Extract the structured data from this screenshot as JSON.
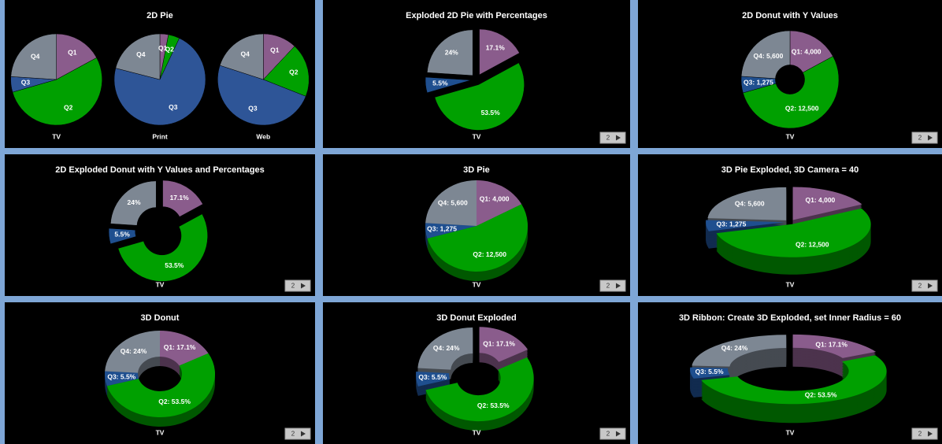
{
  "chart_data": [
    {
      "type": "pie",
      "title": "2D Pie",
      "categories": [
        "Q1",
        "Q2",
        "Q3",
        "Q4"
      ],
      "colors": [
        "#8a5c8c",
        "#00a000",
        "#2e5597",
        "#7d8793"
      ],
      "series": [
        {
          "name": "TV",
          "values": [
            17.1,
            53.5,
            5.5,
            24
          ]
        },
        {
          "name": "Print",
          "values": [
            3,
            4,
            72,
            21
          ]
        },
        {
          "name": "Web",
          "values": [
            12,
            19,
            49,
            20
          ]
        }
      ]
    },
    {
      "type": "pie",
      "title": "Exploded 2D Pie with Percentages",
      "categories": [
        "Q1",
        "Q2",
        "Q3",
        "Q4"
      ],
      "colors": [
        "#8a5c8c",
        "#00a000",
        "#1f4f8f",
        "#7d8793"
      ],
      "exploded": true,
      "pager": "2",
      "series": [
        {
          "name": "TV",
          "values": [
            17.1,
            53.5,
            5.5,
            24
          ],
          "value_labels": [
            "17.1%",
            "53.5%",
            "5.5%",
            "24%"
          ]
        }
      ]
    },
    {
      "type": "donut",
      "title": "2D Donut with Y Values",
      "categories": [
        "Q1",
        "Q2",
        "Q3",
        "Q4"
      ],
      "colors": [
        "#8a5c8c",
        "#00a000",
        "#1f4f8f",
        "#7d8793"
      ],
      "pager": "2",
      "series": [
        {
          "name": "TV",
          "values": [
            4000,
            12500,
            1275,
            5600
          ],
          "value_labels": [
            "Q1: 4,000",
            "Q2: 12,500",
            "Q3: 1,275",
            "Q4: 5,600"
          ]
        }
      ]
    },
    {
      "type": "donut",
      "title": "2D Exploded Donut with Y Values and Percentages",
      "categories": [
        "Q1",
        "Q2",
        "Q3",
        "Q4"
      ],
      "colors": [
        "#8a5c8c",
        "#00a000",
        "#1f4f8f",
        "#7d8793"
      ],
      "exploded": true,
      "pager": "2",
      "series": [
        {
          "name": "TV",
          "values": [
            17.1,
            53.5,
            5.5,
            24
          ],
          "value_labels": [
            "17.1%",
            "53.5%",
            "5.5%",
            "24%"
          ]
        }
      ]
    },
    {
      "type": "pie",
      "title": "3D Pie",
      "categories": [
        "Q1",
        "Q2",
        "Q3",
        "Q4"
      ],
      "colors": [
        "#8a5c8c",
        "#00a000",
        "#1f4f8f",
        "#7d8793"
      ],
      "three_d": true,
      "pager": "2",
      "series": [
        {
          "name": "TV",
          "values": [
            4000,
            12500,
            1275,
            5600
          ],
          "value_labels": [
            "Q1: 4,000",
            "Q2: 12,500",
            "Q3: 1,275",
            "Q4: 5,600"
          ]
        }
      ]
    },
    {
      "type": "pie",
      "title": "3D Pie Exploded, 3D Camera = 40",
      "categories": [
        "Q1",
        "Q2",
        "Q3",
        "Q4"
      ],
      "colors": [
        "#8a5c8c",
        "#00a000",
        "#1f4f8f",
        "#7d8793"
      ],
      "three_d": true,
      "exploded": true,
      "pager": "2",
      "series": [
        {
          "name": "TV",
          "values": [
            4000,
            12500,
            1275,
            5600
          ],
          "value_labels": [
            "Q1: 4,000",
            "Q2: 12,500",
            "Q3: 1,275",
            "Q4: 5,600"
          ]
        }
      ]
    },
    {
      "type": "donut",
      "title": "3D Donut",
      "categories": [
        "Q1",
        "Q2",
        "Q3",
        "Q4"
      ],
      "colors": [
        "#8a5c8c",
        "#00a000",
        "#1f4f8f",
        "#7d8793"
      ],
      "three_d": true,
      "pager": "2",
      "series": [
        {
          "name": "TV",
          "values": [
            17.1,
            53.5,
            5.5,
            24
          ],
          "value_labels": [
            "Q1: 17.1%",
            "Q2: 53.5%",
            "Q3: 5.5%",
            "Q4: 24%"
          ]
        }
      ]
    },
    {
      "type": "donut",
      "title": "3D Donut Exploded",
      "categories": [
        "Q1",
        "Q2",
        "Q3",
        "Q4"
      ],
      "colors": [
        "#8a5c8c",
        "#00a000",
        "#1f4f8f",
        "#7d8793"
      ],
      "three_d": true,
      "exploded": true,
      "pager": "2",
      "series": [
        {
          "name": "TV",
          "values": [
            17.1,
            53.5,
            5.5,
            24
          ],
          "value_labels": [
            "Q1: 17.1%",
            "Q2: 53.5%",
            "Q3: 5.5%",
            "Q4: 24%"
          ]
        }
      ]
    },
    {
      "type": "donut",
      "title": "3D Ribbon: Create 3D Exploded, set Inner Radius = 60",
      "categories": [
        "Q1",
        "Q2",
        "Q3",
        "Q4"
      ],
      "colors": [
        "#8a5c8c",
        "#00a000",
        "#1f4f8f",
        "#7d8793"
      ],
      "three_d": true,
      "exploded": true,
      "inner_radius": 60,
      "pager": "2",
      "series": [
        {
          "name": "TV",
          "values": [
            17.1,
            53.5,
            5.5,
            24
          ],
          "value_labels": [
            "Q1: 17.1%",
            "Q2: 53.5%",
            "Q3: 5.5%",
            "Q4: 24%"
          ]
        }
      ]
    }
  ]
}
